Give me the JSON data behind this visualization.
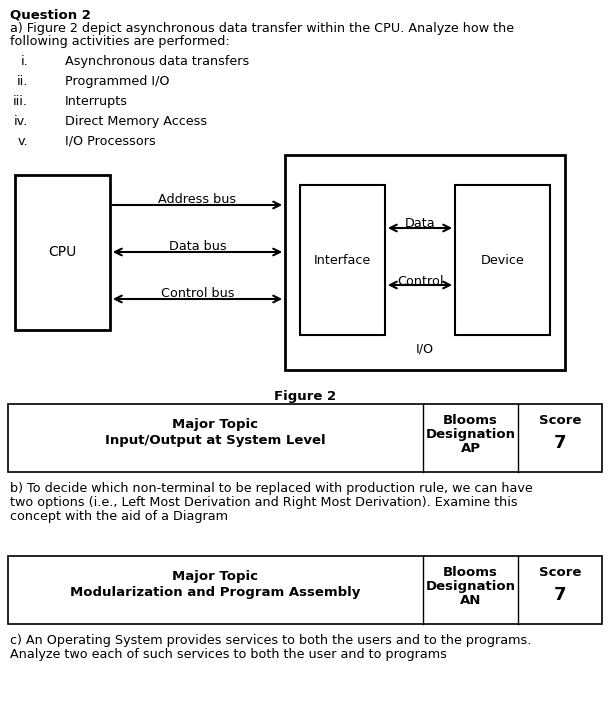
{
  "title_question": "Question 2",
  "text_a_line1": "a) Figure 2 depict asynchronous data transfer within the CPU. Analyze how the",
  "text_a_line2": "following activities are performed:",
  "items": [
    [
      "i.",
      "Asynchronous data transfers"
    ],
    [
      "ii.",
      "Programmed I/O"
    ],
    [
      "iii.",
      "Interrupts"
    ],
    [
      "iv.",
      "Direct Memory Access"
    ],
    [
      "v.",
      "I/O Processors"
    ]
  ],
  "figure_label": "Figure 2",
  "cpu_label": "CPU",
  "interface_label": "Interface",
  "device_label": "Device",
  "io_label": "I/O",
  "bus_labels": [
    "Address bus",
    "Data bus",
    "Control bus"
  ],
  "inner_labels": [
    "Data",
    "Control"
  ],
  "table1_col1_line1": "Major Topic",
  "table1_col1_line2": "Input/Output at System Level",
  "table1_col2_line1": "Blooms",
  "table1_col2_line2": "Designation",
  "table1_col2_line3": "AP",
  "table1_col3_line1": "Score",
  "table1_col3_line2": "7",
  "text_b_line1": "b) To decide which non-terminal to be replaced with production rule, we can have",
  "text_b_line2": "two options (i.e., Left Most Derivation and Right Most Derivation). Examine this",
  "text_b_line3": "concept with the aid of a Diagram",
  "table2_col1_line1": "Major Topic",
  "table2_col1_line2": "Modularization and Program Assembly",
  "table2_col2_line1": "Blooms",
  "table2_col2_line2": "Designation",
  "table2_col2_line3": "AN",
  "table2_col3_line1": "Score",
  "table2_col3_line2": "7",
  "text_c_line1": "c) An Operating System provides services to both the users and to the programs.",
  "text_c_line2": "Analyze two each of such services to both the user and to programs",
  "bg_color": "#ffffff",
  "text_color": "#000000"
}
